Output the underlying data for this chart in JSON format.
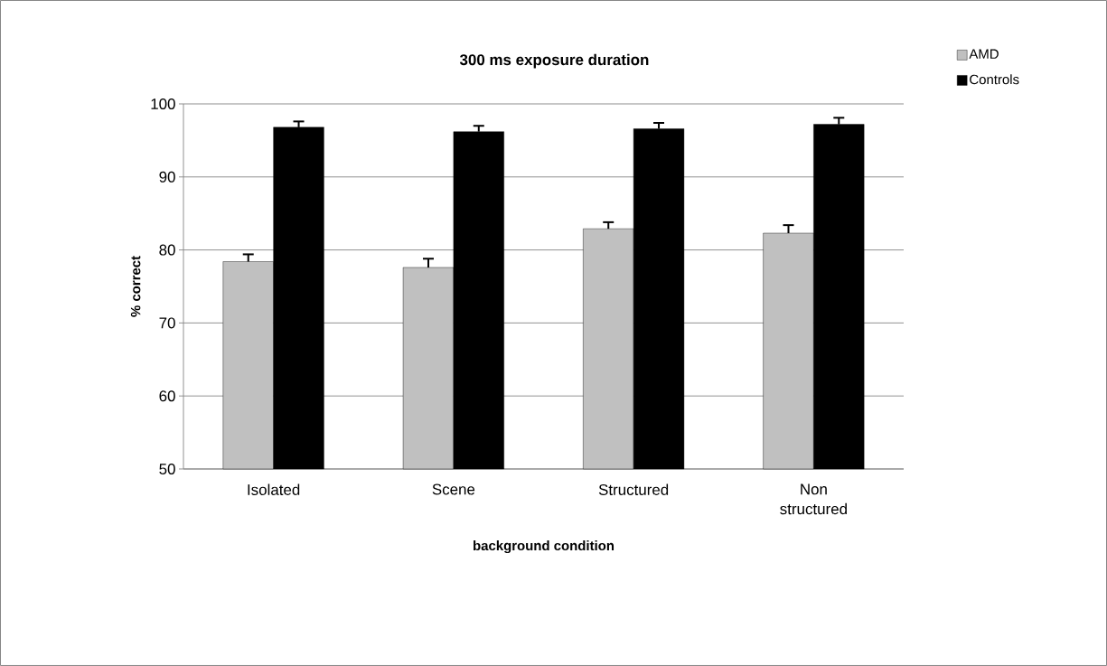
{
  "chart_data": {
    "type": "bar",
    "title": "300 ms exposure duration",
    "xlabel": "background condition",
    "ylabel": "% correct",
    "categories": [
      "Isolated",
      "Scene",
      "Structured",
      "Non structured"
    ],
    "series": [
      {
        "name": "AMD",
        "color": "#c0c0c0",
        "values": [
          78.4,
          77.6,
          82.9,
          82.3
        ],
        "errors": [
          [
            78.4,
            79.4
          ],
          [
            77.6,
            78.8
          ],
          [
            82.9,
            83.8
          ],
          [
            82.3,
            83.4
          ]
        ]
      },
      {
        "name": "Controls",
        "color": "#000000",
        "values": [
          96.8,
          96.2,
          96.6,
          97.2
        ],
        "errors": [
          [
            96.8,
            97.6
          ],
          [
            96.2,
            97.0
          ],
          [
            96.6,
            97.4
          ],
          [
            97.2,
            98.1
          ]
        ]
      }
    ],
    "ylim": [
      50,
      100
    ],
    "yticks": [
      50,
      60,
      70,
      80,
      90,
      100
    ],
    "grid": "y",
    "legend": "top right"
  }
}
